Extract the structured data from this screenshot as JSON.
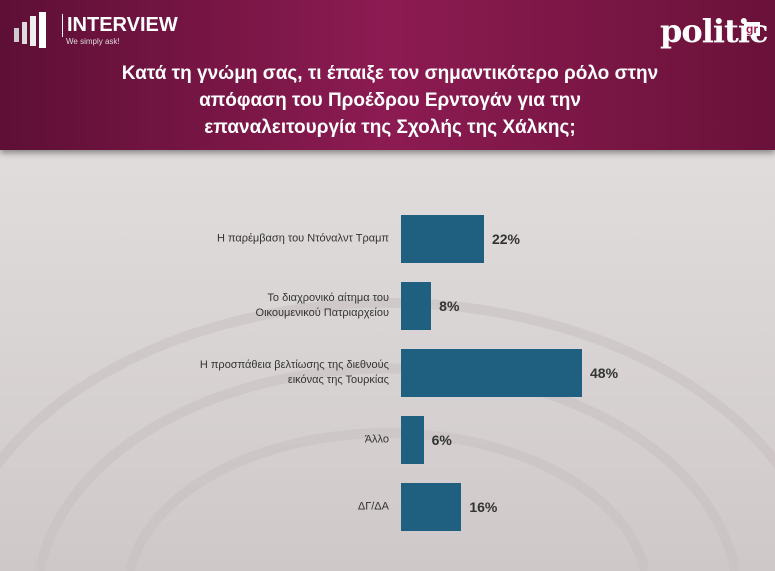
{
  "header": {
    "brand": "INTERVIEW",
    "slogan": "We simply ask!",
    "partner": "politic",
    "partner_suffix": "gr"
  },
  "chart_data": {
    "type": "bar",
    "orientation": "horizontal",
    "title": "Κατά τη γνώμη σας, τι έπαιξε τον σημαντικότερο ρόλο στην\nαπόφαση του Προέδρου Ερντογάν για την\nεπαναλειτουργία της Σχολής της Χάλκης;",
    "categories": [
      "Η παρέμβαση του Ντόναλντ Τραμπ",
      "Το διαχρονικό αίτημα του\nΟικουμενικού Πατριαρχείου",
      "Η προσπάθεια βελτίωσης της διεθνούς\nεικόνας της Τουρκίας",
      "Άλλο",
      "ΔΓ/ΔΑ"
    ],
    "values": [
      22,
      8,
      48,
      6,
      16
    ],
    "value_labels": [
      "22%",
      "8%",
      "48%",
      "6%",
      "16%"
    ],
    "color": "#1f5f80"
  }
}
